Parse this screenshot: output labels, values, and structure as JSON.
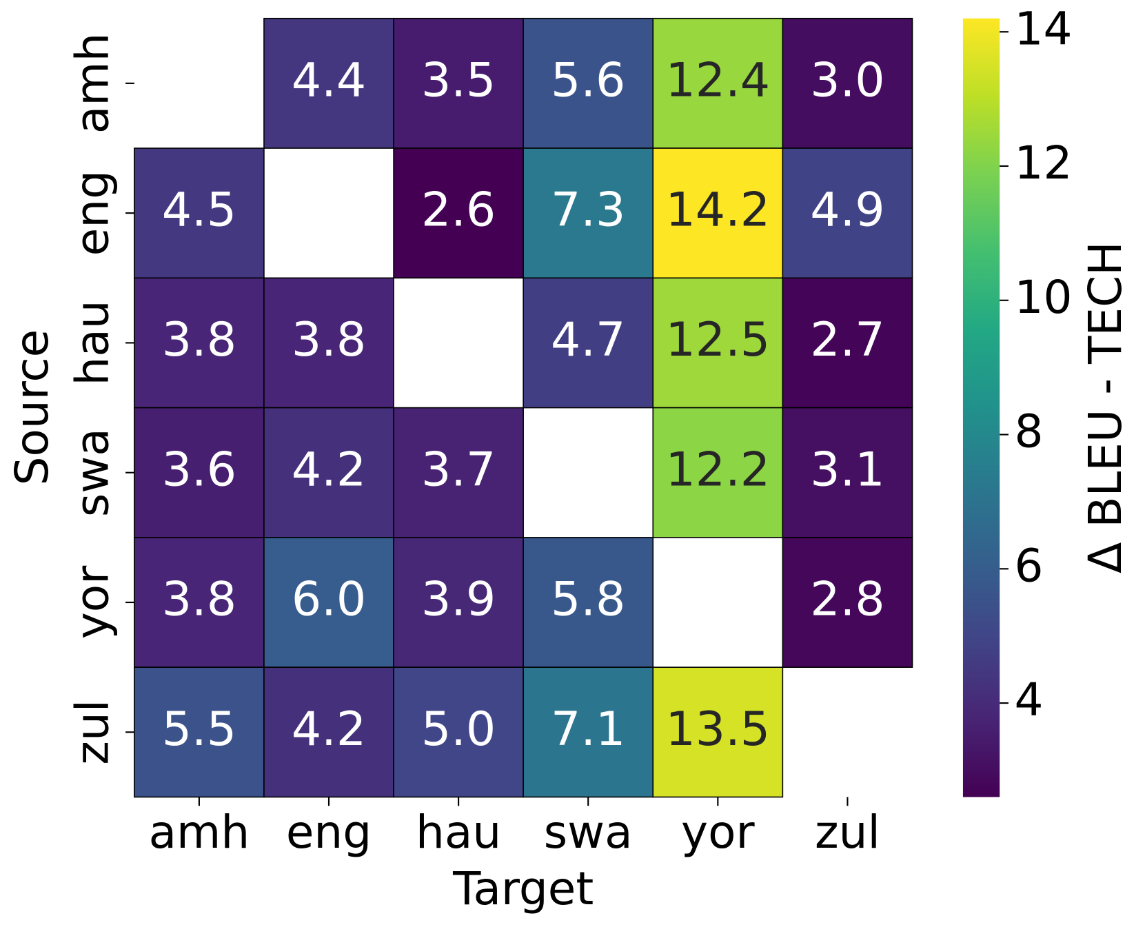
{
  "chart_data": {
    "type": "heatmap",
    "xlabel": "Target",
    "ylabel": "Source",
    "x_categories": [
      "amh",
      "eng",
      "hau",
      "swa",
      "yor",
      "zul"
    ],
    "y_categories": [
      "amh",
      "eng",
      "hau",
      "swa",
      "yor",
      "zul"
    ],
    "values": [
      [
        null,
        4.4,
        3.5,
        5.6,
        12.4,
        3
      ],
      [
        4.5,
        null,
        2.6,
        7.3,
        14.2,
        4.9
      ],
      [
        3.8,
        3.8,
        null,
        4.7,
        12.5,
        2.7
      ],
      [
        3.6,
        4.2,
        3.7,
        null,
        12.2,
        3.1
      ],
      [
        3.8,
        6,
        3.9,
        5.8,
        null,
        2.8
      ],
      [
        5.5,
        4.2,
        5,
        7.1,
        13.5,
        null
      ]
    ],
    "value_labels": [
      [
        null,
        "4.4",
        "3.5",
        "5.6",
        "12.4",
        "3.0"
      ],
      [
        "4.5",
        null,
        "2.6",
        "7.3",
        "14.2",
        "4.9"
      ],
      [
        "3.8",
        "3.8",
        null,
        "4.7",
        "12.5",
        "2.7"
      ],
      [
        "3.6",
        "4.2",
        "3.7",
        null,
        "12.2",
        "3.1"
      ],
      [
        "3.8",
        "6.0",
        "3.9",
        "5.8",
        null,
        "2.8"
      ],
      [
        "5.5",
        "4.2",
        "5.0",
        "7.1",
        "13.5",
        null
      ]
    ],
    "colormap": "viridis",
    "colorbar": {
      "label": "Δ BLEU - TECH",
      "lim": [
        2.6,
        14.2
      ],
      "ticks": [
        4,
        6,
        8,
        10,
        12,
        14
      ]
    }
  }
}
